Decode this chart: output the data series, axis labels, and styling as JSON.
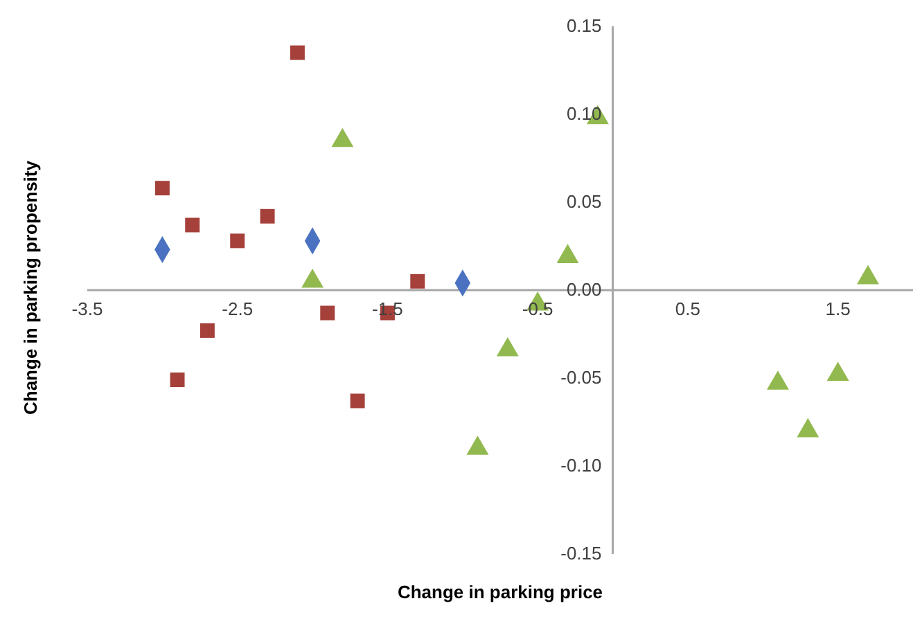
{
  "chart_data": {
    "type": "scatter",
    "xlabel": "Change in parking price",
    "ylabel": "Change in  parking propensity",
    "xlim": [
      -3.5,
      2
    ],
    "xticks": [
      -3.5,
      -2.5,
      -1.5,
      -0.5,
      0.5,
      1.5
    ],
    "ylim": [
      -0.15,
      0.15
    ],
    "yticks": [
      -0.15,
      {
        "value": -0.1,
        "label": "-0.10"
      },
      -0.05,
      {
        "value": 0,
        "label": "0.00"
      },
      0.05,
      {
        "value": 0.1,
        "label": "0.10"
      },
      0.15
    ],
    "grid": false,
    "legend": false,
    "series": [
      {
        "color": "#4a72c0",
        "marker": "diamond",
        "x": [
          -3.0,
          -2.0,
          -1.0
        ],
        "values": [
          0.023,
          0.028,
          0.004
        ]
      },
      {
        "color": "#a5403b",
        "marker": "square",
        "x": [
          -2.1,
          -3.0,
          -2.8,
          -2.5,
          -2.3,
          -1.3,
          -1.9,
          -1.5,
          -2.7,
          -2.9,
          -1.7
        ],
        "values": [
          0.135,
          0.058,
          0.037,
          0.028,
          0.042,
          0.005,
          -0.013,
          -0.013,
          -0.023,
          -0.051,
          -0.063
        ]
      },
      {
        "color": "#92b94f",
        "marker": "triangle",
        "x": [
          -1.8,
          -2.0,
          -0.1,
          -0.3,
          -0.5,
          -0.7,
          -0.9,
          1.1,
          1.3,
          1.5,
          1.7
        ],
        "values": [
          0.085,
          0.005,
          0.098,
          0.019,
          -0.008,
          -0.034,
          -0.09,
          -0.053,
          -0.08,
          -0.048,
          0.007
        ]
      }
    ]
  }
}
